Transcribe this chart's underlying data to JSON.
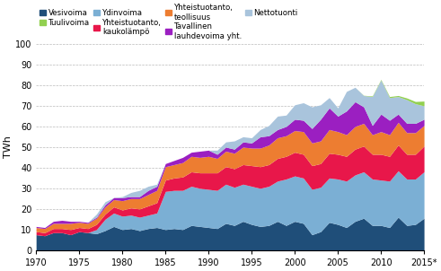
{
  "years": [
    1970,
    1971,
    1972,
    1973,
    1974,
    1975,
    1976,
    1977,
    1978,
    1979,
    1980,
    1981,
    1982,
    1983,
    1984,
    1985,
    1986,
    1987,
    1988,
    1989,
    1990,
    1991,
    1992,
    1993,
    1994,
    1995,
    1996,
    1997,
    1998,
    1999,
    2000,
    2001,
    2002,
    2003,
    2004,
    2005,
    2006,
    2007,
    2008,
    2009,
    2010,
    2011,
    2012,
    2013,
    2014,
    2015
  ],
  "vesivoima": [
    7.5,
    7.0,
    8.5,
    8.5,
    7.5,
    9.0,
    8.5,
    8.0,
    9.5,
    11.5,
    10.0,
    10.5,
    9.5,
    10.5,
    11.0,
    10.0,
    10.5,
    10.0,
    12.0,
    11.5,
    11.0,
    10.5,
    13.0,
    12.0,
    14.0,
    12.5,
    11.5,
    12.0,
    14.0,
    12.0,
    14.0,
    13.0,
    7.5,
    9.0,
    13.5,
    12.5,
    11.0,
    14.0,
    15.5,
    12.0,
    12.0,
    11.0,
    16.0,
    12.0,
    12.5,
    15.5
  ],
  "tuulivoima": [
    0,
    0,
    0,
    0,
    0,
    0,
    0,
    0,
    0,
    0,
    0,
    0,
    0,
    0,
    0,
    0,
    0,
    0,
    0,
    0,
    0,
    0,
    0,
    0,
    0,
    0,
    0,
    0,
    0,
    0,
    0,
    0,
    0,
    0,
    0,
    0,
    0,
    0,
    0.1,
    0.3,
    0.3,
    0.5,
    0.5,
    0.8,
    1.1,
    2.3
  ],
  "ydinvoima": [
    0,
    0,
    0,
    0,
    0,
    0,
    0,
    2.0,
    5.5,
    6.5,
    6.5,
    6.5,
    6.5,
    6.5,
    7.0,
    18.5,
    18.5,
    19.0,
    19.0,
    18.5,
    18.5,
    18.5,
    19.0,
    18.5,
    18.0,
    18.5,
    18.5,
    19.0,
    19.5,
    22.5,
    22.0,
    22.0,
    22.0,
    21.5,
    21.5,
    22.0,
    22.5,
    22.5,
    22.5,
    22.5,
    22.0,
    22.5,
    22.5,
    22.5,
    22.0,
    22.5
  ],
  "yhteistuotanto_kaukolampo": [
    1.5,
    1.5,
    2.0,
    2.0,
    2.5,
    2.0,
    2.0,
    2.5,
    2.5,
    3.0,
    3.0,
    3.5,
    4.0,
    4.5,
    5.0,
    5.5,
    6.0,
    6.5,
    7.0,
    7.5,
    8.0,
    8.5,
    8.5,
    9.0,
    9.5,
    10.0,
    10.5,
    10.5,
    11.0,
    11.0,
    11.5,
    11.5,
    11.5,
    11.5,
    12.0,
    12.0,
    12.0,
    12.5,
    12.5,
    12.0,
    12.5,
    12.0,
    12.5,
    12.0,
    12.0,
    12.5
  ],
  "yhteistuotanto_teollisuus": [
    2.0,
    2.0,
    2.5,
    2.5,
    3.0,
    2.5,
    2.5,
    3.0,
    3.5,
    3.5,
    4.5,
    4.5,
    5.0,
    5.5,
    6.0,
    6.5,
    6.5,
    7.0,
    7.5,
    7.5,
    8.0,
    7.0,
    7.5,
    7.5,
    8.5,
    8.5,
    9.0,
    9.5,
    10.0,
    10.0,
    10.5,
    11.0,
    11.0,
    11.0,
    11.5,
    11.0,
    10.5,
    11.0,
    11.0,
    9.5,
    11.0,
    10.5,
    11.0,
    10.5,
    10.5,
    10.0
  ],
  "tavallinen_lauhdevoima": [
    0.5,
    0.5,
    1.0,
    1.5,
    1.0,
    0.5,
    0.5,
    0.5,
    1.0,
    1.0,
    1.5,
    1.0,
    1.0,
    2.0,
    2.0,
    1.5,
    2.0,
    2.5,
    2.0,
    3.0,
    3.0,
    2.0,
    2.0,
    2.0,
    2.5,
    2.5,
    5.5,
    4.5,
    4.0,
    4.5,
    5.5,
    5.5,
    7.0,
    10.5,
    10.5,
    7.5,
    11.5,
    12.0,
    8.0,
    4.5,
    8.5,
    7.0,
    4.0,
    4.5,
    4.5,
    3.0
  ],
  "nettotuonti": [
    0,
    0,
    0,
    0,
    0,
    0,
    0,
    1.5,
    1.5,
    0,
    0.5,
    2.0,
    3.0,
    2.0,
    1.0,
    0,
    0,
    0,
    0,
    0,
    0,
    2.0,
    2.5,
    4.0,
    2.5,
    2.5,
    3.5,
    5.0,
    6.5,
    5.5,
    7.0,
    8.5,
    10.5,
    7.0,
    5.0,
    4.0,
    9.5,
    7.0,
    5.5,
    14.0,
    16.5,
    11.0,
    8.5,
    11.5,
    9.5,
    6.5
  ],
  "colors": {
    "vesivoima": "#1F4E79",
    "tuulivoima": "#92D050",
    "ydinvoima": "#7BAFD4",
    "yhteistuotanto_kaukolampo": "#E8174A",
    "yhteistuotanto_teollisuus": "#ED7D31",
    "tavallinen_lauhdevoima": "#9B1FC1",
    "nettotuonti": "#A9C4DC"
  },
  "legend_labels": {
    "vesivoima": "Vesivoima",
    "tuulivoima": "Tuulivoima",
    "ydinvoima": "Ydinvoima",
    "yhteistuotanto_kaukolampo": "Yhteistuotanto,\nkaukolämpö",
    "yhteistuotanto_teollisuus": "Yhteistuotanto,\nteollisuus",
    "tavallinen_lauhdevoima": "Tavallinen\nlauhdevoima yht.",
    "nettotuonti": "Nettotuonti"
  },
  "ylabel": "TWh",
  "ylim": [
    0,
    100
  ],
  "yticks": [
    0,
    10,
    20,
    30,
    40,
    50,
    60,
    70,
    80,
    90,
    100
  ],
  "xticks": [
    1970,
    1975,
    1980,
    1985,
    1990,
    1995,
    2000,
    2005,
    2010,
    2015
  ],
  "xlim": [
    1970,
    2015
  ]
}
